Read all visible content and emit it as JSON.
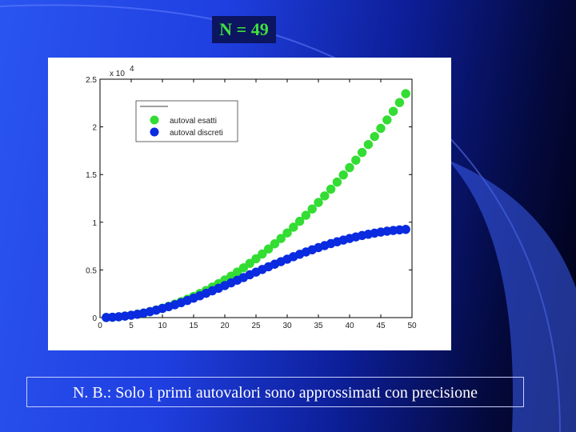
{
  "slide": {
    "title": "N = 49",
    "note": "N. B.: Solo i primi autovalori sono approssimati con precisione"
  },
  "chart_data": {
    "type": "scatter",
    "title": "",
    "xlabel": "",
    "ylabel": "",
    "y_exponent_label": "x 10",
    "y_exponent_power": "4",
    "xlim": [
      0,
      50
    ],
    "ylim": [
      0,
      2.5
    ],
    "xticks": [
      "0",
      "5",
      "10",
      "15",
      "20",
      "25",
      "30",
      "35",
      "40",
      "45",
      "50"
    ],
    "yticks": [
      "0",
      "0.5",
      "1",
      "1.5",
      "2",
      "2.5"
    ],
    "grid": false,
    "legend_position": "top-left",
    "x": [
      1,
      2,
      3,
      4,
      5,
      6,
      7,
      8,
      9,
      10,
      11,
      12,
      13,
      14,
      15,
      16,
      17,
      18,
      19,
      20,
      21,
      22,
      23,
      24,
      25,
      26,
      27,
      28,
      29,
      30,
      31,
      32,
      33,
      34,
      35,
      36,
      37,
      38,
      39,
      40,
      41,
      42,
      43,
      44,
      45,
      46,
      47,
      48,
      49
    ],
    "series": [
      {
        "name": "autoval esatti",
        "color": "#33dd33",
        "values": [
          0.001,
          0.004,
          0.009,
          0.016,
          0.025,
          0.036,
          0.048,
          0.063,
          0.08,
          0.099,
          0.119,
          0.142,
          0.167,
          0.193,
          0.222,
          0.253,
          0.285,
          0.32,
          0.356,
          0.395,
          0.435,
          0.478,
          0.522,
          0.569,
          0.617,
          0.667,
          0.72,
          0.774,
          0.83,
          0.888,
          0.948,
          1.01,
          1.073,
          1.139,
          1.207,
          1.276,
          1.347,
          1.421,
          1.496,
          1.573,
          1.651,
          1.732,
          1.815,
          1.899,
          1.985,
          2.073,
          2.163,
          2.255,
          2.348
        ]
      },
      {
        "name": "autoval discreti",
        "color": "#0a2be0",
        "values": [
          0.001,
          0.004,
          0.009,
          0.016,
          0.025,
          0.035,
          0.048,
          0.062,
          0.078,
          0.096,
          0.115,
          0.135,
          0.157,
          0.18,
          0.204,
          0.229,
          0.255,
          0.281,
          0.308,
          0.336,
          0.364,
          0.392,
          0.42,
          0.449,
          0.477,
          0.505,
          0.533,
          0.56,
          0.587,
          0.613,
          0.639,
          0.664,
          0.688,
          0.711,
          0.734,
          0.755,
          0.776,
          0.795,
          0.813,
          0.83,
          0.846,
          0.861,
          0.874,
          0.886,
          0.897,
          0.906,
          0.914,
          0.92,
          0.925
        ]
      }
    ]
  }
}
